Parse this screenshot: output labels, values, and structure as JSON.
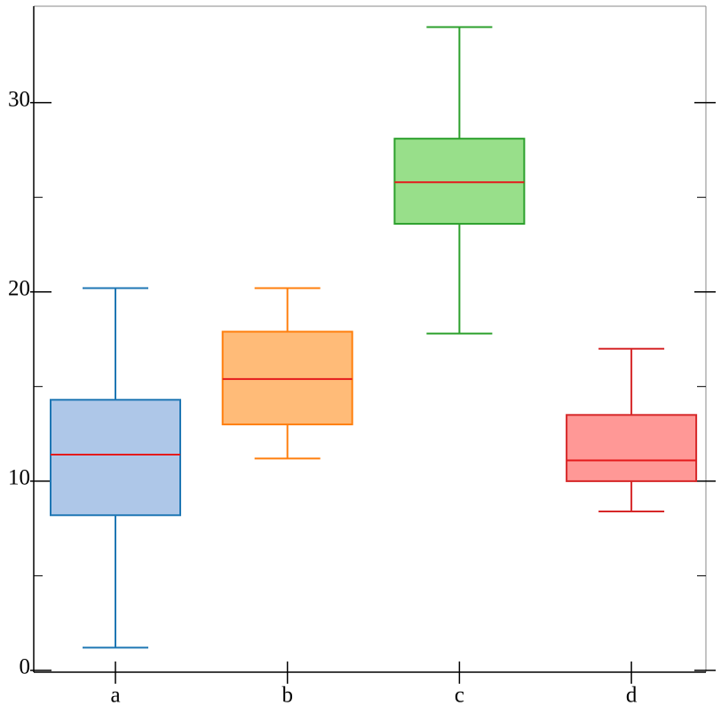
{
  "chart_data": {
    "type": "box",
    "categories": [
      "a",
      "b",
      "c",
      "d"
    ],
    "boxes": [
      {
        "low": 1.2,
        "q1": 8.2,
        "median": 11.4,
        "q3": 14.3,
        "high": 20.2,
        "color": "#1f77b4",
        "fill": "#aec7e8"
      },
      {
        "low": 11.2,
        "q1": 13.0,
        "median": 15.4,
        "q3": 17.9,
        "high": 20.2,
        "color": "#ff7f0e",
        "fill": "#ffbb78"
      },
      {
        "low": 17.8,
        "q1": 23.6,
        "median": 25.8,
        "q3": 28.1,
        "high": 34.0,
        "color": "#2ca02c",
        "fill": "#98df8a"
      },
      {
        "low": 8.4,
        "q1": 10.0,
        "median": 11.1,
        "q3": 13.5,
        "high": 17.0,
        "color": "#d62728",
        "fill": "#ff9896"
      }
    ],
    "median_color": "#e41a1c",
    "ylim": [
      0,
      35.1
    ],
    "yticks": [
      0,
      10,
      20,
      30
    ],
    "minor_yticks": [
      5,
      15,
      25
    ]
  }
}
